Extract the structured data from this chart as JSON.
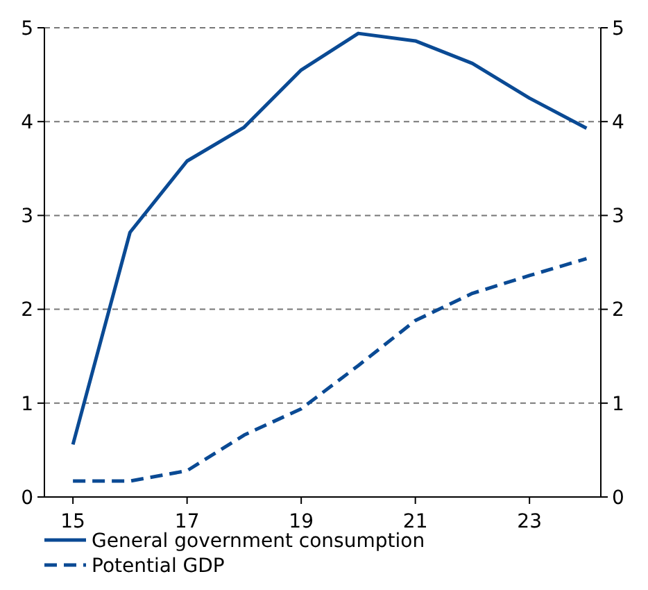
{
  "chart_data": {
    "type": "line",
    "x": [
      15,
      16,
      17,
      18,
      19,
      20,
      21,
      22,
      23,
      24
    ],
    "xlim": [
      14.5,
      24.25
    ],
    "xticks": [
      15,
      17,
      19,
      21,
      23
    ],
    "ylim": [
      0,
      5
    ],
    "yticks": [
      0,
      1,
      2,
      3,
      4,
      5
    ],
    "y2lim": [
      0,
      5
    ],
    "y2ticks": [
      0,
      1,
      2,
      3,
      4,
      5
    ],
    "grid": "y",
    "legend": "bottom",
    "series": [
      {
        "name": "General government consumption",
        "color": "#0a4a94",
        "line_style": "solid",
        "values": [
          0.56,
          2.82,
          3.58,
          3.94,
          4.55,
          4.94,
          4.86,
          4.62,
          4.25,
          3.93
        ]
      },
      {
        "name": "Potential GDP",
        "color": "#0a4a94",
        "line_style": "dashed",
        "values": [
          0.17,
          0.17,
          0.28,
          0.66,
          0.94,
          1.4,
          1.88,
          2.17,
          2.36,
          2.54
        ]
      }
    ]
  }
}
